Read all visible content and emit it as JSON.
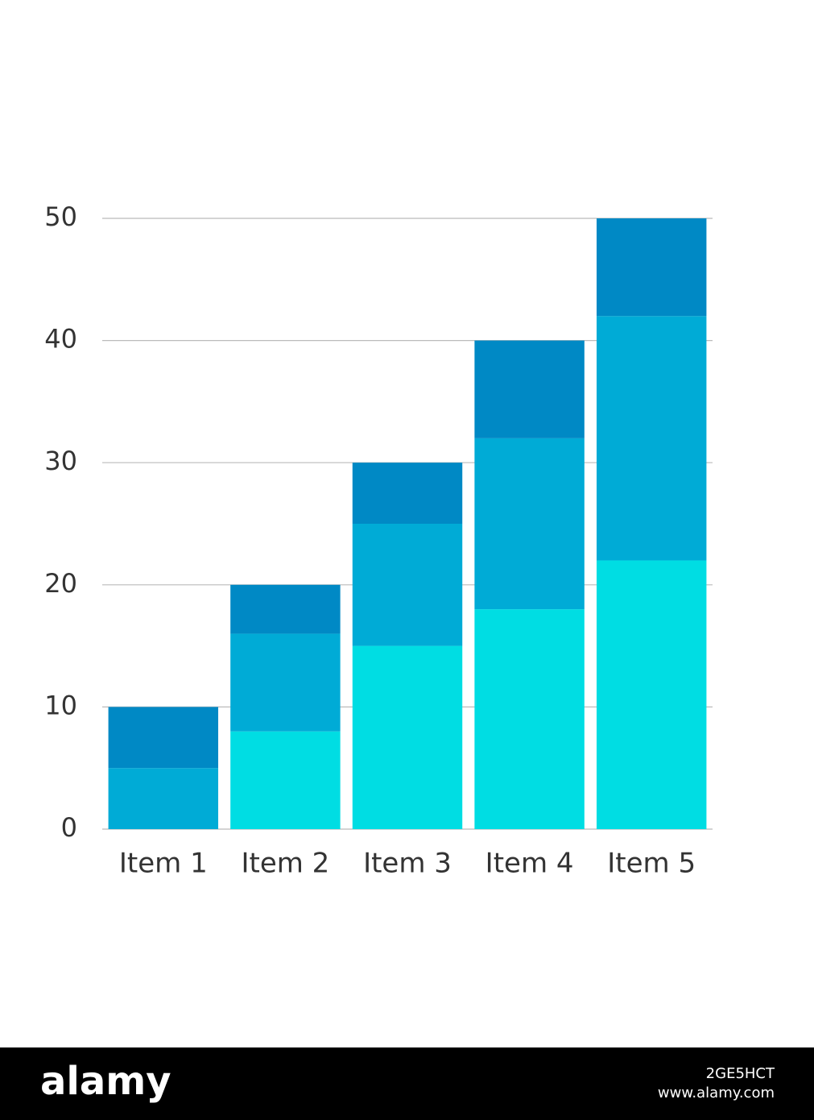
{
  "chart_data": {
    "type": "stacked-bar",
    "categories": [
      "Item 1",
      "Item 2",
      "Item 3",
      "Item 4",
      "Item 5"
    ],
    "series": [
      {
        "color": "#00dde3",
        "values": [
          0,
          8,
          15,
          18,
          22
        ]
      },
      {
        "color": "#00abd6",
        "values": [
          5,
          8,
          10,
          14,
          20
        ]
      },
      {
        "color": "#0089c5",
        "values": [
          5,
          4,
          5,
          8,
          8
        ]
      }
    ],
    "ylim": [
      0,
      50
    ],
    "yticks": [
      0,
      10,
      20,
      30,
      40,
      50
    ],
    "grid": true
  },
  "footer": {
    "brand": "alamy",
    "code": "2GE5HCT",
    "url": "www.alamy.com"
  }
}
